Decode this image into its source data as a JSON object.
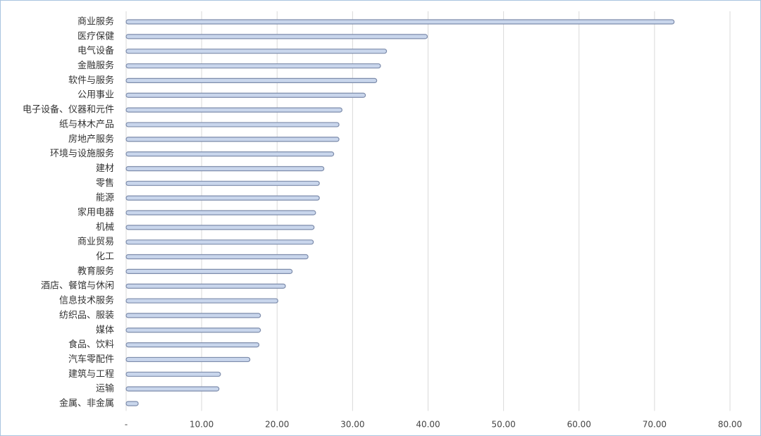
{
  "chart_data": {
    "type": "barh",
    "categories": [
      "商业服务",
      "医疗保健",
      "电气设备",
      "金融服务",
      "软件与服务",
      "公用事业",
      "电子设备、仪器和元件",
      "纸与林木产品",
      "房地产服务",
      "环境与设施服务",
      "建材",
      "零售",
      "能源",
      "家用电器",
      "机械",
      "商业贸易",
      "化工",
      "教育服务",
      "酒店、餐馆与休闲",
      "信息技术服务",
      "纺织品、服装",
      "媒体",
      "食品、饮料",
      "汽车零配件",
      "建筑与工程",
      "运输",
      "金属、非金属"
    ],
    "values": [
      72.6,
      39.9,
      34.5,
      33.7,
      33.2,
      31.7,
      28.6,
      28.2,
      28.2,
      27.5,
      26.2,
      25.6,
      25.6,
      25.1,
      24.9,
      24.8,
      24.1,
      22.0,
      21.1,
      20.1,
      17.8,
      17.8,
      17.6,
      16.4,
      12.5,
      12.3,
      1.6
    ],
    "color": "#c9d6ec",
    "xlim": [
      0,
      80
    ],
    "xticks": [
      {
        "value": 0,
        "label": "-"
      },
      {
        "value": 10,
        "label": "10.00"
      },
      {
        "value": 20,
        "label": "20.00"
      },
      {
        "value": 30,
        "label": "30.00"
      },
      {
        "value": 40,
        "label": "40.00"
      },
      {
        "value": 50,
        "label": "50.00"
      },
      {
        "value": 60,
        "label": "60.00"
      },
      {
        "value": 70,
        "label": "70.00"
      },
      {
        "value": 80,
        "label": "80.00"
      }
    ],
    "grid": true
  }
}
